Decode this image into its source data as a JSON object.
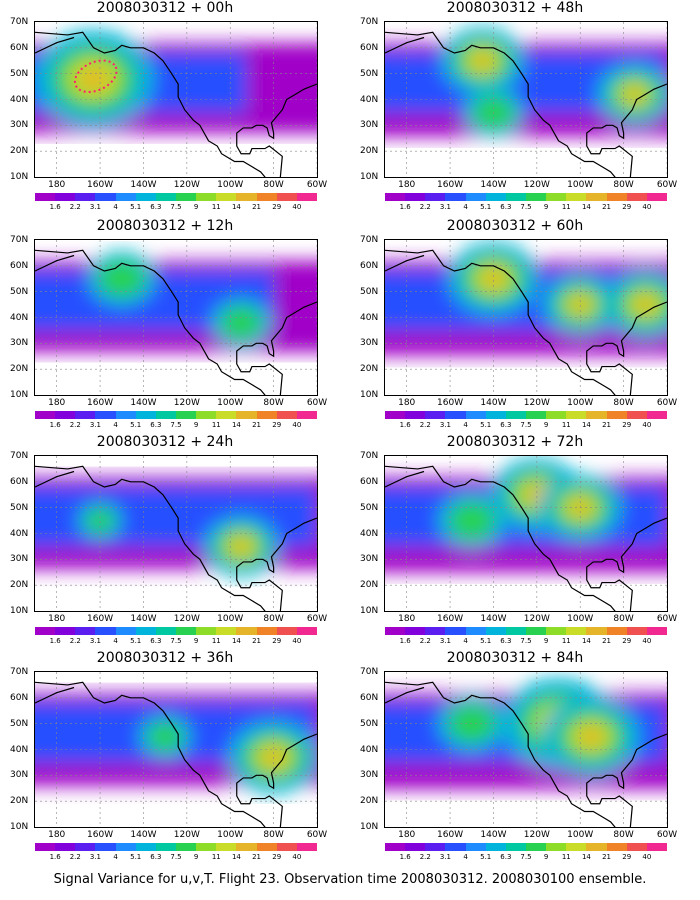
{
  "panels": [
    {
      "title": "2008030312 + 00h",
      "spread": 0.35,
      "hot": [
        [
          -163,
          48,
          1.6
        ]
      ]
    },
    {
      "title": "2008030312 + 12h",
      "spread": 0.45,
      "hot": [
        [
          -150,
          55,
          0.9
        ],
        [
          -95,
          38,
          0.8
        ]
      ]
    },
    {
      "title": "2008030312 + 24h",
      "spread": 0.6,
      "hot": [
        [
          -95,
          35,
          1.0
        ],
        [
          -160,
          45,
          0.6
        ]
      ]
    },
    {
      "title": "2008030312 + 36h",
      "spread": 0.7,
      "hot": [
        [
          -80,
          37,
          1.2
        ],
        [
          -130,
          45,
          0.7
        ]
      ]
    },
    {
      "title": "2008030312 + 48h",
      "spread": 0.8,
      "hot": [
        [
          -145,
          55,
          1.1
        ],
        [
          -75,
          42,
          1.0
        ],
        [
          -140,
          35,
          0.8
        ]
      ]
    },
    {
      "title": "2008030312 + 60h",
      "spread": 0.9,
      "hot": [
        [
          -140,
          55,
          1.2
        ],
        [
          -100,
          45,
          1.0
        ],
        [
          -70,
          45,
          1.1
        ]
      ]
    },
    {
      "title": "2008030312 + 72h",
      "spread": 1.0,
      "hot": [
        [
          -120,
          55,
          1.2
        ],
        [
          -100,
          50,
          1.1
        ],
        [
          -150,
          45,
          0.9
        ]
      ]
    },
    {
      "title": "2008030312 + 84h",
      "spread": 1.1,
      "hot": [
        [
          -110,
          50,
          1.5
        ],
        [
          -95,
          45,
          1.3
        ],
        [
          -150,
          50,
          0.9
        ]
      ]
    }
  ],
  "y_ticks": [
    "70N",
    "60N",
    "50N",
    "40N",
    "30N",
    "20N",
    "10N"
  ],
  "x_ticks": [
    "180",
    "160W",
    "140W",
    "120W",
    "100W",
    "80W",
    "60W"
  ],
  "colorbar": {
    "labels": [
      "1.6",
      "2.2",
      "3.1",
      "4",
      "5.1",
      "6.3",
      "7.5",
      "9",
      "11",
      "14",
      "21",
      "29",
      "40"
    ],
    "colors": [
      "#a000c8",
      "#8200dc",
      "#5a1ef0",
      "#2850ff",
      "#1e8cff",
      "#00b4dc",
      "#00c8a0",
      "#28d250",
      "#8cdc28",
      "#c8dc28",
      "#e6b428",
      "#f08228",
      "#f05050",
      "#f02890"
    ]
  },
  "footer": "Signal Variance for u,v,T. Flight 23. Observation time 2008030312. 2008030100 ensemble."
}
